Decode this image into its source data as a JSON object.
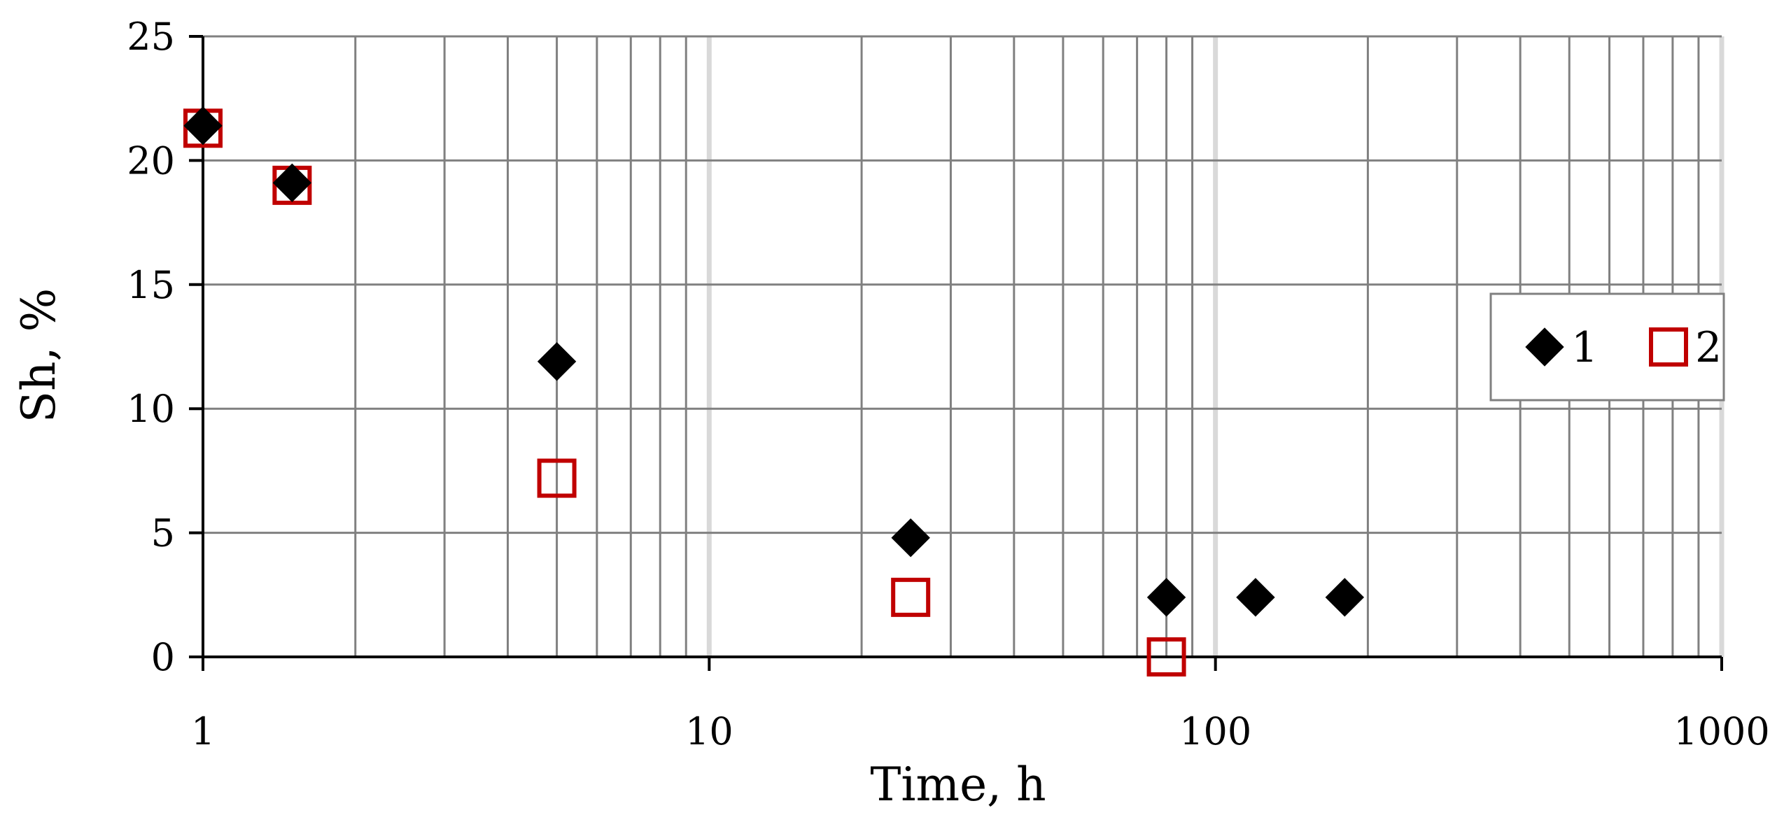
{
  "chart_data": {
    "type": "scatter",
    "title": "",
    "xlabel": "Time, h",
    "ylabel": "Sh, %",
    "xscale": "log",
    "xlim": [
      1,
      1000
    ],
    "ylim": [
      0,
      25
    ],
    "x_ticks": [
      1,
      10,
      100,
      1000
    ],
    "x_tick_labels": [
      "1",
      "10",
      "100",
      "1000"
    ],
    "y_ticks": [
      0,
      5,
      10,
      15,
      20,
      25
    ],
    "y_tick_labels": [
      "0",
      "5",
      "10",
      "15",
      "20",
      "25"
    ],
    "grid": true,
    "legend_position": "right",
    "series": [
      {
        "name": "1",
        "marker": "diamond",
        "color": "#000000",
        "points": [
          {
            "x": 1,
            "y": 21.4
          },
          {
            "x": 1.5,
            "y": 19.1
          },
          {
            "x": 5,
            "y": 11.9
          },
          {
            "x": 25,
            "y": 4.8
          },
          {
            "x": 80,
            "y": 2.4
          },
          {
            "x": 120,
            "y": 2.4
          },
          {
            "x": 180,
            "y": 2.4
          }
        ]
      },
      {
        "name": "2",
        "marker": "square-open",
        "color": "#c00000",
        "points": [
          {
            "x": 1,
            "y": 21.3
          },
          {
            "x": 1.5,
            "y": 19.0
          },
          {
            "x": 5,
            "y": 7.2
          },
          {
            "x": 25,
            "y": 2.4
          },
          {
            "x": 80,
            "y": 0.0
          }
        ]
      }
    ]
  }
}
